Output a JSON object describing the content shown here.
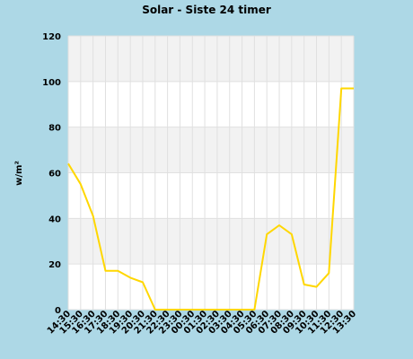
{
  "chart_data": {
    "type": "line",
    "title": "Solar - Siste 24 timer",
    "xlabel": "",
    "ylabel": "w/m²",
    "ylim": [
      0,
      120
    ],
    "yticks": [
      0,
      20,
      40,
      60,
      80,
      100,
      120
    ],
    "grid": true,
    "x": [
      "14:30",
      "15:30",
      "16:30",
      "17:30",
      "18:30",
      "19:30",
      "20:30",
      "21:30",
      "22:30",
      "23:30",
      "00:30",
      "01:30",
      "02:30",
      "03:30",
      "04:30",
      "05:30",
      "06:30",
      "07:30",
      "08:30",
      "09:30",
      "10:30",
      "11:30",
      "12:30",
      "13:30"
    ],
    "series": [
      {
        "values": [
          64,
          55,
          41,
          17,
          17,
          14,
          12,
          0,
          0,
          0,
          0,
          0,
          0,
          0,
          0,
          0,
          33,
          37,
          33,
          11,
          10,
          16,
          97,
          97
        ],
        "color": "#ffd700"
      }
    ]
  },
  "colors": {
    "background": "#add8e6",
    "band_odd": "#f2f2f2",
    "band_even": "#ffffff",
    "gridline": "#e0e0e0",
    "line": "#ffd700"
  }
}
